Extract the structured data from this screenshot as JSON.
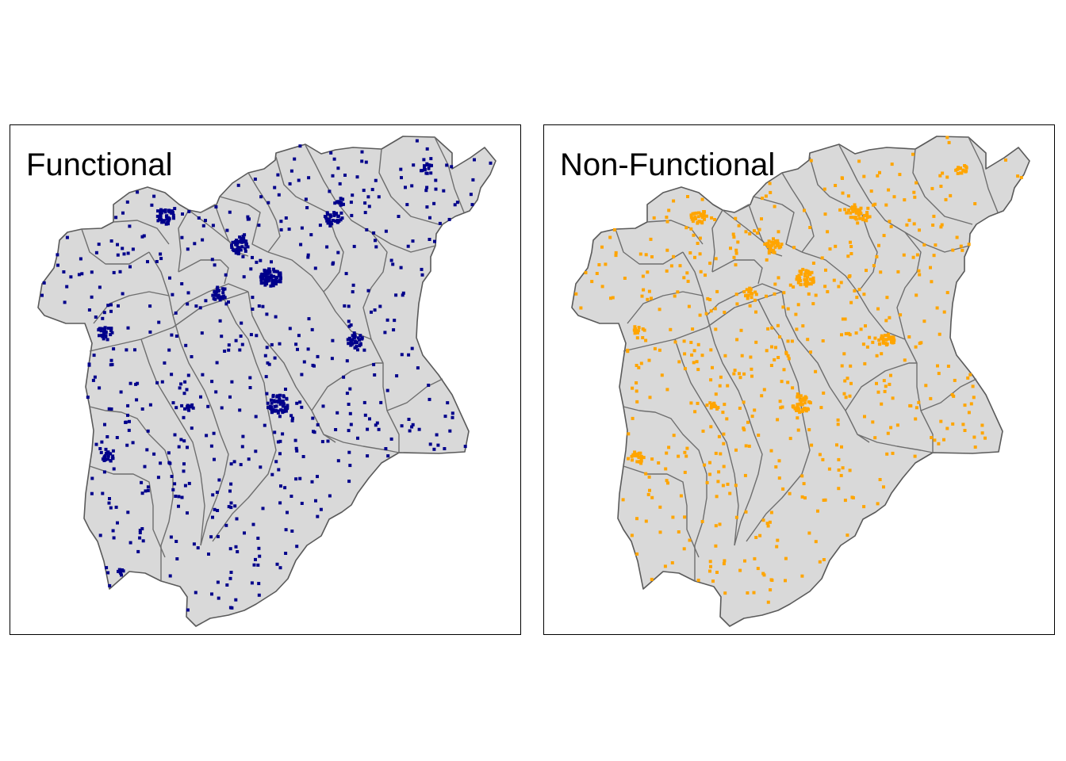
{
  "figure": {
    "panels": [
      {
        "id": "functional",
        "title": "Functional",
        "point_color": "#00008B"
      },
      {
        "id": "nonfunctional",
        "title": "Non-Functional",
        "point_color": "#FFA500"
      }
    ],
    "region_fill": "#d9d9d9",
    "boundary_color": "#5a5a5a"
  }
}
